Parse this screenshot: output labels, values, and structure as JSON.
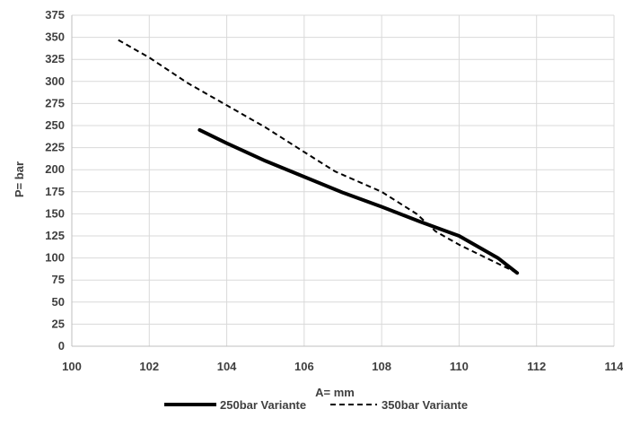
{
  "chart_data": {
    "type": "line",
    "title": "",
    "xlabel": "A= mm",
    "ylabel": "P= bar",
    "xlim": [
      100,
      114
    ],
    "ylim": [
      0,
      375
    ],
    "x_ticks": [
      100,
      102,
      104,
      106,
      108,
      110,
      112,
      114
    ],
    "y_ticks": [
      0,
      25,
      50,
      75,
      100,
      125,
      150,
      175,
      200,
      225,
      250,
      275,
      300,
      325,
      350,
      375
    ],
    "grid": true,
    "legend_position": "bottom",
    "series": [
      {
        "name": "250bar Variante",
        "style": "solid",
        "color": "#000000",
        "points": [
          [
            103.3,
            245
          ],
          [
            104.0,
            230
          ],
          [
            105.0,
            210
          ],
          [
            106.0,
            192
          ],
          [
            107.0,
            174
          ],
          [
            108.0,
            158
          ],
          [
            109.0,
            141
          ],
          [
            110.0,
            125
          ],
          [
            111.0,
            100
          ],
          [
            111.5,
            83
          ]
        ]
      },
      {
        "name": "350bar Variante",
        "style": "dashed",
        "color": "#000000",
        "points": [
          [
            101.2,
            347
          ],
          [
            102.0,
            327
          ],
          [
            103.0,
            298
          ],
          [
            104.0,
            273
          ],
          [
            105.0,
            248
          ],
          [
            106.0,
            220
          ],
          [
            106.8,
            198
          ],
          [
            108.0,
            175
          ],
          [
            108.9,
            150
          ],
          [
            109.4,
            130
          ],
          [
            110.0,
            115
          ],
          [
            110.8,
            98
          ],
          [
            111.5,
            83
          ]
        ]
      }
    ]
  }
}
